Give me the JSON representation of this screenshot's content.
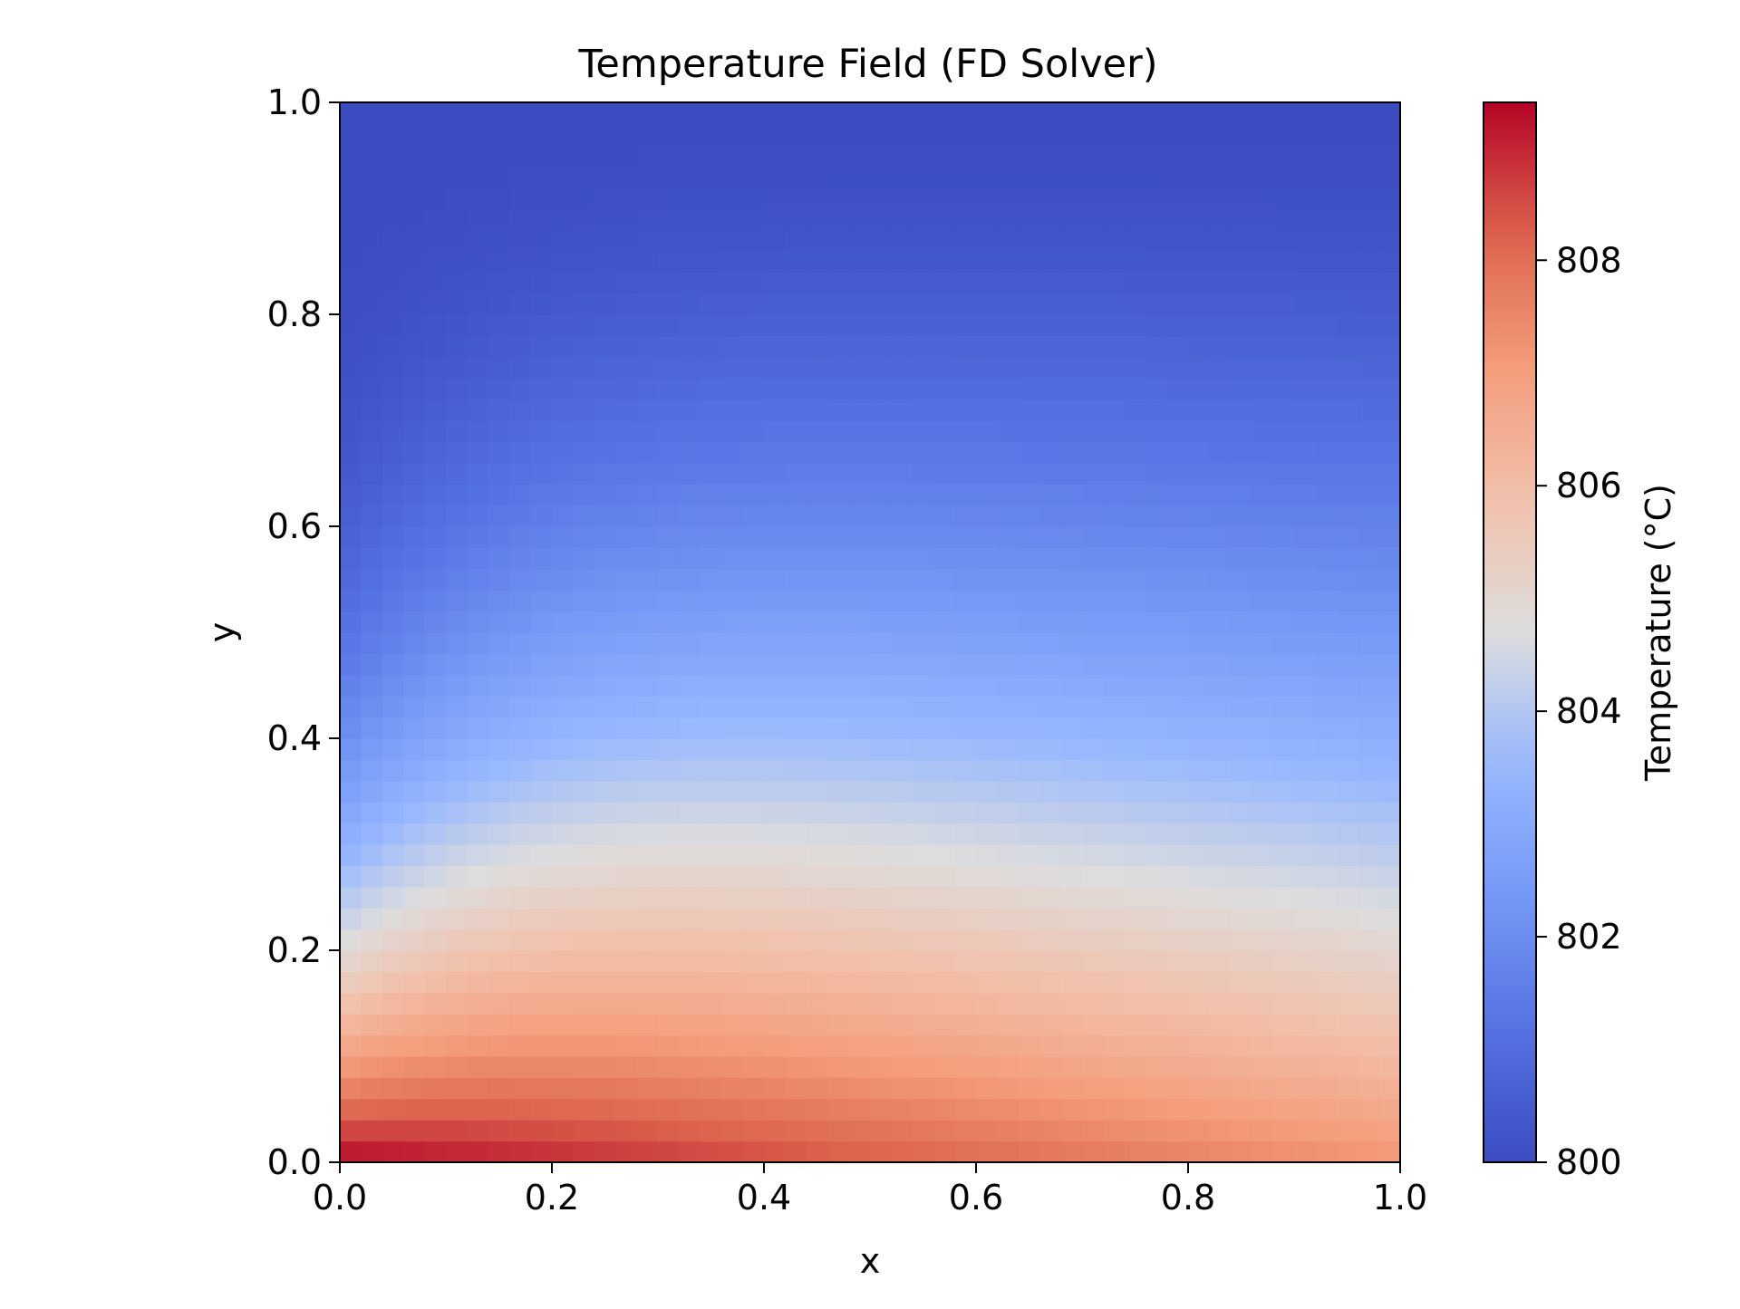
{
  "chart_data": {
    "type": "heatmap",
    "title": "Temperature Field (FD Solver)",
    "xlabel": "x",
    "ylabel": "y",
    "xlim": [
      0.0,
      1.0
    ],
    "ylim": [
      0.0,
      1.0
    ],
    "x_ticks": [
      "0.0",
      "0.2",
      "0.4",
      "0.6",
      "0.8",
      "1.0"
    ],
    "y_ticks": [
      "0.0",
      "0.2",
      "0.4",
      "0.6",
      "0.8",
      "1.0"
    ],
    "colormap": "coolwarm",
    "grid": false,
    "grid_cols": 50,
    "grid_rows": 50,
    "field": {
      "left_bottom": 809.4,
      "right_bottom": 807.2,
      "top": 800.0,
      "description_free": true
    },
    "colorbar": {
      "label": "Temperature (°C)",
      "min": 800.0,
      "max": 809.4,
      "ticks": [
        "800",
        "802",
        "804",
        "806",
        "808"
      ],
      "tick_values": [
        800,
        802,
        804,
        806,
        808
      ],
      "placement": "right"
    }
  }
}
